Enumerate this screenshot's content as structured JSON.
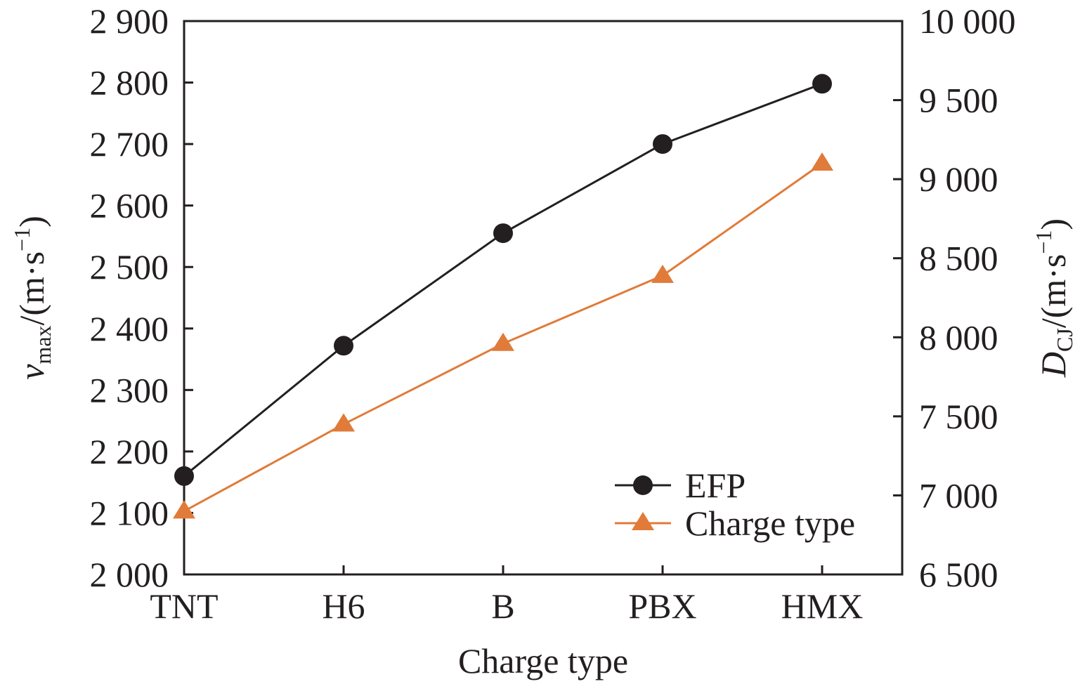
{
  "chart_data": {
    "type": "line",
    "categories": [
      "TNT",
      "H6",
      "B",
      "PBX",
      "HMX"
    ],
    "xlabel": "Charge type",
    "left_axis": {
      "label_main": "v",
      "label_sub": "max",
      "label_unit": "/(m·s",
      "label_sup": "−1",
      "label_close": ")",
      "ylim": [
        2000,
        2900
      ],
      "ticks": [
        2000,
        2100,
        2200,
        2300,
        2400,
        2500,
        2600,
        2700,
        2800,
        2900
      ],
      "tick_labels": [
        "2 000",
        "2 100",
        "2 200",
        "2 300",
        "2 400",
        "2 500",
        "2 600",
        "2 700",
        "2 800",
        "2 900"
      ]
    },
    "right_axis": {
      "label_main": "D",
      "label_sub": "CJ",
      "label_unit": "/(m·s",
      "label_sup": "−1",
      "label_close": ")",
      "ylim": [
        6500,
        10000
      ],
      "ticks": [
        6500,
        7000,
        7500,
        8000,
        8500,
        9000,
        9500,
        10000
      ],
      "tick_labels": [
        "6 500",
        "7 000",
        "7 500",
        "8 000",
        "8 500",
        "9 000",
        "9 500",
        "10 000"
      ]
    },
    "series": [
      {
        "name": "EFP",
        "axis": "left",
        "marker": "circle",
        "color": "#231f20",
        "values": [
          2160,
          2372,
          2555,
          2700,
          2798
        ]
      },
      {
        "name": "Charge type",
        "axis": "right",
        "marker": "triangle",
        "color": "#e07b39",
        "values": [
          6900,
          7450,
          7960,
          8390,
          9100
        ]
      }
    ],
    "legend_position": "bottom-right",
    "grid": false
  }
}
